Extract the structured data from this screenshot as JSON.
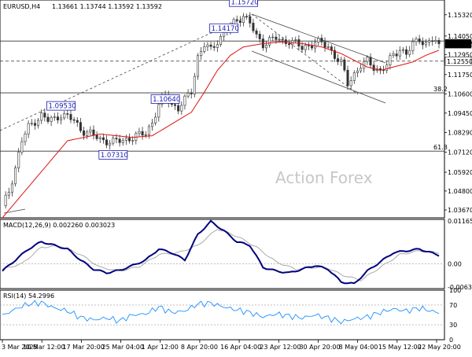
{
  "header": {
    "symbol": "EURUSD,H4",
    "ohlc": "1.13661 1.13744 1.13592 1.13592"
  },
  "watermark": "Action Forex",
  "colors": {
    "candle": "#333333",
    "ma": "#e01010",
    "macd_line": "#00007f",
    "macd_signal": "#aaaaaa",
    "rsi": "#1e90ff",
    "trend_line": "#444444"
  },
  "chart_data": [
    {
      "type": "candlestick",
      "title": "EURUSD,H4",
      "ylim": [
        1.032,
        1.162
      ],
      "y_ticks": [
        "1.15320",
        "1.14050",
        "1.12950",
        "1.11750",
        "1.10600",
        "1.09450",
        "1.08290",
        "1.07120",
        "1.05920",
        "1.04800",
        "1.03670"
      ],
      "x_ticks": [
        "3 Mar 2025",
        "10 Mar 12:00",
        "17 Mar 20:00",
        "25 Mar 04:00",
        "1 Apr 12:00",
        "8 Apr 20:00",
        "16 Apr 04:00",
        "23 Apr 12:00",
        "30 Apr 20:00",
        "8 May 04:00",
        "15 May 12:00",
        "22 May 20:00"
      ],
      "current_price": "1.13592",
      "h_levels": [
        {
          "value": 1.1375,
          "style": "solid"
        },
        {
          "value": 1.1255,
          "style": "dashed",
          "label": "1.12550"
        },
        {
          "value": 1.1066,
          "style": "solid",
          "label": "38.2"
        },
        {
          "value": 1.0718,
          "style": "solid",
          "label": "61.8"
        }
      ],
      "annotations": [
        {
          "text": "1.15720",
          "value": 1.1572
        },
        {
          "text": "1.09530",
          "value": 1.0953
        },
        {
          "text": "1.07310",
          "value": 1.0731
        },
        {
          "text": "1.10640",
          "value": 1.1064
        },
        {
          "text": "1.14170",
          "value": 1.1417
        }
      ],
      "price_path": [
        [
          0,
          1.038
        ],
        [
          2,
          1.048
        ],
        [
          4,
          1.062
        ],
        [
          6,
          1.078
        ],
        [
          8,
          1.086
        ],
        [
          10,
          1.09
        ],
        [
          12,
          1.093
        ],
        [
          14,
          1.09
        ],
        [
          16,
          1.091
        ],
        [
          18,
          1.094
        ],
        [
          20,
          1.092
        ],
        [
          22,
          1.09
        ],
        [
          24,
          1.085
        ],
        [
          26,
          1.083
        ],
        [
          28,
          1.081
        ],
        [
          30,
          1.079
        ],
        [
          32,
          1.078
        ],
        [
          34,
          1.077
        ],
        [
          36,
          1.078
        ],
        [
          38,
          1.079
        ],
        [
          40,
          1.08
        ],
        [
          42,
          1.081
        ],
        [
          44,
          1.083
        ],
        [
          46,
          1.089
        ],
        [
          48,
          1.099
        ],
        [
          50,
          1.105
        ],
        [
          52,
          1.1
        ],
        [
          54,
          1.097
        ],
        [
          56,
          1.102
        ],
        [
          58,
          1.108
        ],
        [
          60,
          1.128
        ],
        [
          62,
          1.135
        ],
        [
          64,
          1.132
        ],
        [
          66,
          1.138
        ],
        [
          68,
          1.142
        ],
        [
          70,
          1.146
        ],
        [
          72,
          1.15
        ],
        [
          74,
          1.153
        ],
        [
          76,
          1.148
        ],
        [
          78,
          1.14
        ],
        [
          80,
          1.136
        ],
        [
          82,
          1.138
        ],
        [
          84,
          1.139
        ],
        [
          86,
          1.137
        ],
        [
          88,
          1.138
        ],
        [
          90,
          1.136
        ],
        [
          92,
          1.133
        ],
        [
          94,
          1.135
        ],
        [
          96,
          1.137
        ],
        [
          98,
          1.136
        ],
        [
          100,
          1.134
        ],
        [
          102,
          1.129
        ],
        [
          104,
          1.124
        ],
        [
          106,
          1.112
        ],
        [
          108,
          1.118
        ],
        [
          110,
          1.123
        ],
        [
          112,
          1.125
        ],
        [
          114,
          1.122
        ],
        [
          116,
          1.12
        ],
        [
          118,
          1.123
        ],
        [
          120,
          1.129
        ],
        [
          122,
          1.133
        ],
        [
          124,
          1.13
        ],
        [
          126,
          1.135
        ],
        [
          128,
          1.139
        ],
        [
          130,
          1.136
        ],
        [
          132,
          1.138
        ],
        [
          134,
          1.1359
        ]
      ],
      "ma_path": [
        [
          0,
          1.032
        ],
        [
          10,
          1.055
        ],
        [
          20,
          1.078
        ],
        [
          30,
          1.082
        ],
        [
          40,
          1.08
        ],
        [
          46,
          1.081
        ],
        [
          52,
          1.088
        ],
        [
          58,
          1.095
        ],
        [
          62,
          1.107
        ],
        [
          66,
          1.12
        ],
        [
          70,
          1.129
        ],
        [
          74,
          1.134
        ],
        [
          80,
          1.136
        ],
        [
          86,
          1.137
        ],
        [
          92,
          1.136
        ],
        [
          98,
          1.134
        ],
        [
          104,
          1.13
        ],
        [
          108,
          1.126
        ],
        [
          112,
          1.122
        ],
        [
          116,
          1.12
        ],
        [
          120,
          1.122
        ],
        [
          126,
          1.125
        ],
        [
          130,
          1.129
        ],
        [
          134,
          1.132
        ]
      ]
    },
    {
      "type": "line",
      "title": "MACD(12,26,9) 0.002260 0.003023",
      "ylim": [
        -0.0068,
        0.0121
      ],
      "y_ticks": [
        "0.011654",
        "0.00",
        "-0.006345"
      ],
      "series": [
        {
          "name": "",
          "values": [
            [
              0,
              -0.002
            ],
            [
              4,
              0.001
            ],
            [
              8,
              0.004
            ],
            [
              12,
              0.006
            ],
            [
              16,
              0.005
            ],
            [
              20,
              0.004
            ],
            [
              24,
              0.001
            ],
            [
              28,
              -0.0015
            ],
            [
              32,
              -0.0025
            ],
            [
              36,
              -0.0018
            ],
            [
              40,
              -0.0005
            ],
            [
              44,
              0.001
            ],
            [
              48,
              0.004
            ],
            [
              52,
              0.003
            ],
            [
              56,
              0.001
            ],
            [
              60,
              0.008
            ],
            [
              64,
              0.0115
            ],
            [
              68,
              0.009
            ],
            [
              72,
              0.006
            ],
            [
              76,
              0.005
            ],
            [
              80,
              -0.001
            ],
            [
              84,
              -0.002
            ],
            [
              88,
              -0.0025
            ],
            [
              92,
              -0.0015
            ],
            [
              96,
              -0.0005
            ],
            [
              100,
              -0.0015
            ],
            [
              104,
              -0.005
            ],
            [
              108,
              -0.0055
            ],
            [
              112,
              -0.002
            ],
            [
              116,
              0.0005
            ],
            [
              120,
              0.003
            ],
            [
              124,
              0.0035
            ],
            [
              128,
              0.004
            ],
            [
              134,
              0.0023
            ]
          ]
        },
        {
          "name": "",
          "values": [
            [
              0,
              -0.0015
            ],
            [
              6,
              0.0
            ],
            [
              12,
              0.0045
            ],
            [
              18,
              0.0048
            ],
            [
              24,
              0.0025
            ],
            [
              30,
              -0.001
            ],
            [
              36,
              -0.002
            ],
            [
              42,
              -0.0008
            ],
            [
              48,
              0.0025
            ],
            [
              54,
              0.003
            ],
            [
              60,
              0.005
            ],
            [
              66,
              0.0095
            ],
            [
              72,
              0.0075
            ],
            [
              78,
              0.0045
            ],
            [
              84,
              0.0005
            ],
            [
              90,
              -0.0015
            ],
            [
              96,
              -0.001
            ],
            [
              100,
              -0.0012
            ],
            [
              104,
              -0.003
            ],
            [
              110,
              -0.0045
            ],
            [
              116,
              -0.001
            ],
            [
              122,
              0.0025
            ],
            [
              128,
              0.0035
            ],
            [
              134,
              0.003
            ]
          ]
        }
      ]
    },
    {
      "type": "line",
      "title": "RSI(14) 54.2996",
      "ylim": [
        0,
        100
      ],
      "y_ticks": [
        "100",
        "70",
        "30",
        "0"
      ],
      "h_levels": [
        70,
        30
      ],
      "series": [
        {
          "name": "",
          "values": [
            [
              0,
              48
            ],
            [
              4,
              62
            ],
            [
              8,
              72
            ],
            [
              12,
              75
            ],
            [
              16,
              64
            ],
            [
              20,
              58
            ],
            [
              24,
              45
            ],
            [
              28,
              40
            ],
            [
              32,
              44
            ],
            [
              36,
              38
            ],
            [
              40,
              50
            ],
            [
              44,
              52
            ],
            [
              48,
              66
            ],
            [
              52,
              55
            ],
            [
              56,
              58
            ],
            [
              60,
              72
            ],
            [
              64,
              74
            ],
            [
              68,
              66
            ],
            [
              72,
              60
            ],
            [
              76,
              55
            ],
            [
              80,
              46
            ],
            [
              84,
              52
            ],
            [
              88,
              48
            ],
            [
              92,
              44
            ],
            [
              96,
              50
            ],
            [
              100,
              44
            ],
            [
              104,
              36
            ],
            [
              108,
              42
            ],
            [
              112,
              46
            ],
            [
              116,
              55
            ],
            [
              120,
              62
            ],
            [
              124,
              58
            ],
            [
              128,
              64
            ],
            [
              134,
              54
            ]
          ]
        }
      ]
    }
  ]
}
